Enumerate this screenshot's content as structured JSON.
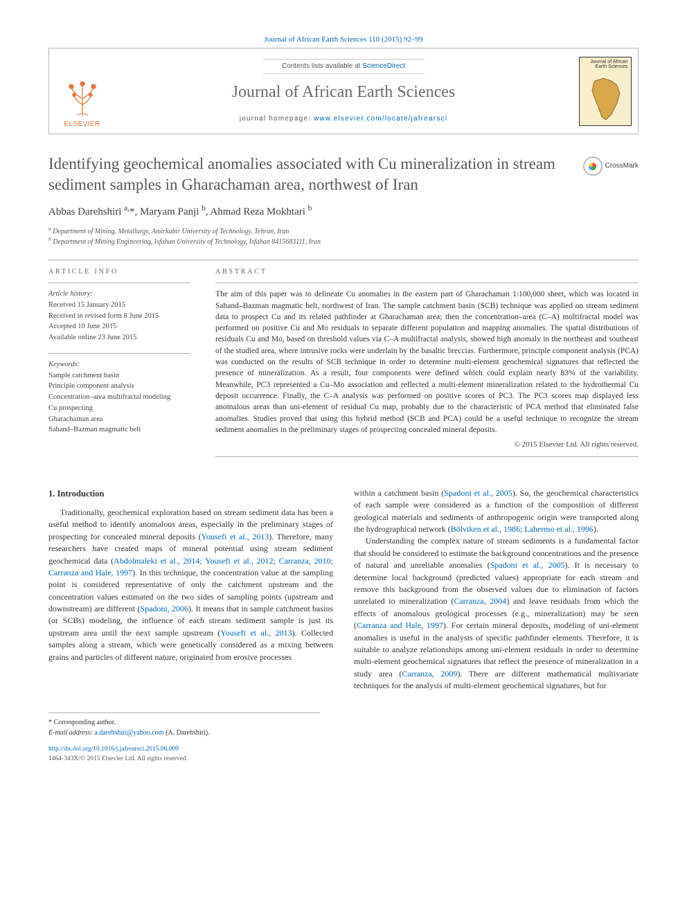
{
  "header": {
    "citation": "Journal of African Earth Sciences 110 (2015) 92–99",
    "contents_line_prefix": "Contents lists available at ",
    "contents_line_link": "ScienceDirect",
    "journal_name": "Journal of African Earth Sciences",
    "homepage_prefix": "journal homepage: ",
    "homepage_url": "www.elsevier.com/locate/jafrearsci",
    "publisher_label": "ELSEVIER",
    "cover_label_line1": "Journal of African",
    "cover_label_line2": "Earth Sciences",
    "colors": {
      "elsevier_orange": "#e77636",
      "link_blue": "#0068b3",
      "cover_bg": "#f7eecb",
      "rule_grey": "#b0b0b0"
    }
  },
  "crossmark": {
    "label": "CrossMark"
  },
  "title": "Identifying geochemical anomalies associated with Cu mineralization in stream sediment samples in Gharachaman area, northwest of Iran",
  "authors_html": "Abbas Darehshiri <sup>a,</sup>*, Maryam Panji <sup>b</sup>, Ahmad Reza Mokhtari <sup>b</sup>",
  "authors": [
    {
      "name": "Abbas Darehshiri",
      "aff": "a",
      "corr": true
    },
    {
      "name": "Maryam Panji",
      "aff": "b",
      "corr": false
    },
    {
      "name": "Ahmad Reza Mokhtari",
      "aff": "b",
      "corr": false
    }
  ],
  "affiliations": {
    "a": "Department of Mining, Metallurgy, Amirkabir University of Technology, Tehran, Iran",
    "b": "Department of Mining Engineering, Isfahan University of Technology, Isfahan 8415683111, Iran"
  },
  "article_info": {
    "heading": "ARTICLE INFO",
    "history_label": "Article history:",
    "history": [
      "Received 15 January 2015",
      "Received in revised form 8 June 2015",
      "Accepted 10 June 2015",
      "Available online 23 June 2015"
    ],
    "keywords_label": "Keywords:",
    "keywords": [
      "Sample catchment basin",
      "Principle component analysis",
      "Concentration–area multifractal modeling",
      "Cu prospecting",
      "Gharachaman area",
      "Sahand–Bazman magmatic belt"
    ]
  },
  "abstract": {
    "heading": "ABSTRACT",
    "text": "The aim of this paper was to delineate Cu anomalies in the eastern part of Gharachaman 1:100,000 sheet, which was located in Sahand–Bazman magmatic belt, northwest of Iran. The sample catchment basin (SCB) technique was applied on stream sediment data to prospect Cu and its related pathfinder at Gharachaman area; then the concentration–area (C–A) multifractal model was performed on positive Cu and Mo residuals to separate different population and mapping anomalies. The spatial distributions of residuals Cu and Mo, based on threshold values via C–A multifractal analysis, showed high anomaly in the northeast and southeast of the studied area, where intrusive rocks were underlain by the basaltic breccias. Furthermore, principle component analysis (PCA) was conducted on the results of SCB technique in order to determine multi-element geochemical signatures that reflected the presence of mineralization. As a result, four components were defined which could explain nearly 83% of the variability. Meanwhile, PC3 represented a Cu–Mo association and reflected a multi-element mineralization related to the hydrothermal Cu deposit occurrence. Finally, the C–A analysis was performed on positive scores of PC3. The PC3 scores map displayed less anomalous areas than uni-element of residual Cu map, probably due to the characteristic of PCA method that eliminated false anomalies. Studies proved that using this hybrid method (SCB and PCA) could be a useful technique to recognize the stream sediment anomalies in the preliminary stages of prospecting concealed mineral deposits.",
    "copyright": "© 2015 Elsevier Ltd. All rights reserved."
  },
  "body": {
    "section_number": "1.",
    "section_title": "Introduction",
    "col1_paras": [
      "Traditionally, geochemical exploration based on stream sediment data has been a useful method to identify anomalous areas, especially in the preliminary stages of prospecting for concealed mineral deposits (<span class=\"cite\">Yousefi et al., 2013</span>). Therefore, many researchers have created maps of mineral potential using stream sediment geochemical data (<span class=\"cite\">Abdolmaleki et al., 2014; Yousefi et al., 2012; Carranza, 2010; Carranza and Hale, 1997</span>). In this technique, the concentration value at the sampling point is considered representative of only the catchment upstream and the concentration values estimated on the two sides of sampling points (upstream and downstream) are different (<span class=\"cite\">Spadoni, 2006</span>). It means that in sample catchment basins (or SCBs) modeling, the influence of each stream sediment sample is just its upstream area until the next sample upstream (<span class=\"cite\">Yousefi et al., 2013</span>). Collected samples along a stream, which were genetically considered as a mixing between grains and particles of different nature, originated from erosive processes"
    ],
    "col2_paras": [
      "within a catchment basin (<span class=\"cite\">Spadoni et al., 2005</span>). So, the geochemical characteristics of each sample were considered as a function of the composition of different geological materials and sediments of anthropogenic origin were transported along the hydrographical network (<span class=\"cite\">Bölviken et al., 1986; Lahermo et al., 1996</span>).",
      "Understanding the complex nature of stream sediments is a fundamental factor that should be considered to estimate the background concentrations and the presence of natural and unreliable anomalies (<span class=\"cite\">Spadoni et al., 2005</span>). It is necessary to determine local background (predicted values) appropriate for each stream and remove this background from the observed values due to elimination of factors unrelated to mineralization (<span class=\"cite\">Carranza, 2004</span>) and leave residuals from which the effects of anomalous geological processes (e.g., mineralization) may be seen (<span class=\"cite\">Carranza and Hale, 1997</span>). For certain mineral deposits, modeling of uni-element anomalies is useful in the analysis of specific pathfinder elements. Therefore, it is suitable to analyze relationships among uni-element residuals in order to determine multi-element geochemical signatures that reflect the presence of mineralization in a study area (<span class=\"cite\">Carranza, 2009</span>). There are different mathematical multivariate techniques for the analysis of multi-element geochemical signatures, but for"
    ]
  },
  "footnotes": {
    "corr_label": "* Corresponding author.",
    "email_label": "E-mail address:",
    "email_value": "a.darehshiri@yahoo.com",
    "email_owner": "(A. Darehshiri)."
  },
  "footer": {
    "doi": "http://dx.doi.org/10.1016/j.jafrearsci.2015.06.009",
    "issn_line": "1464-343X/© 2015 Elsevier Ltd. All rights reserved."
  }
}
